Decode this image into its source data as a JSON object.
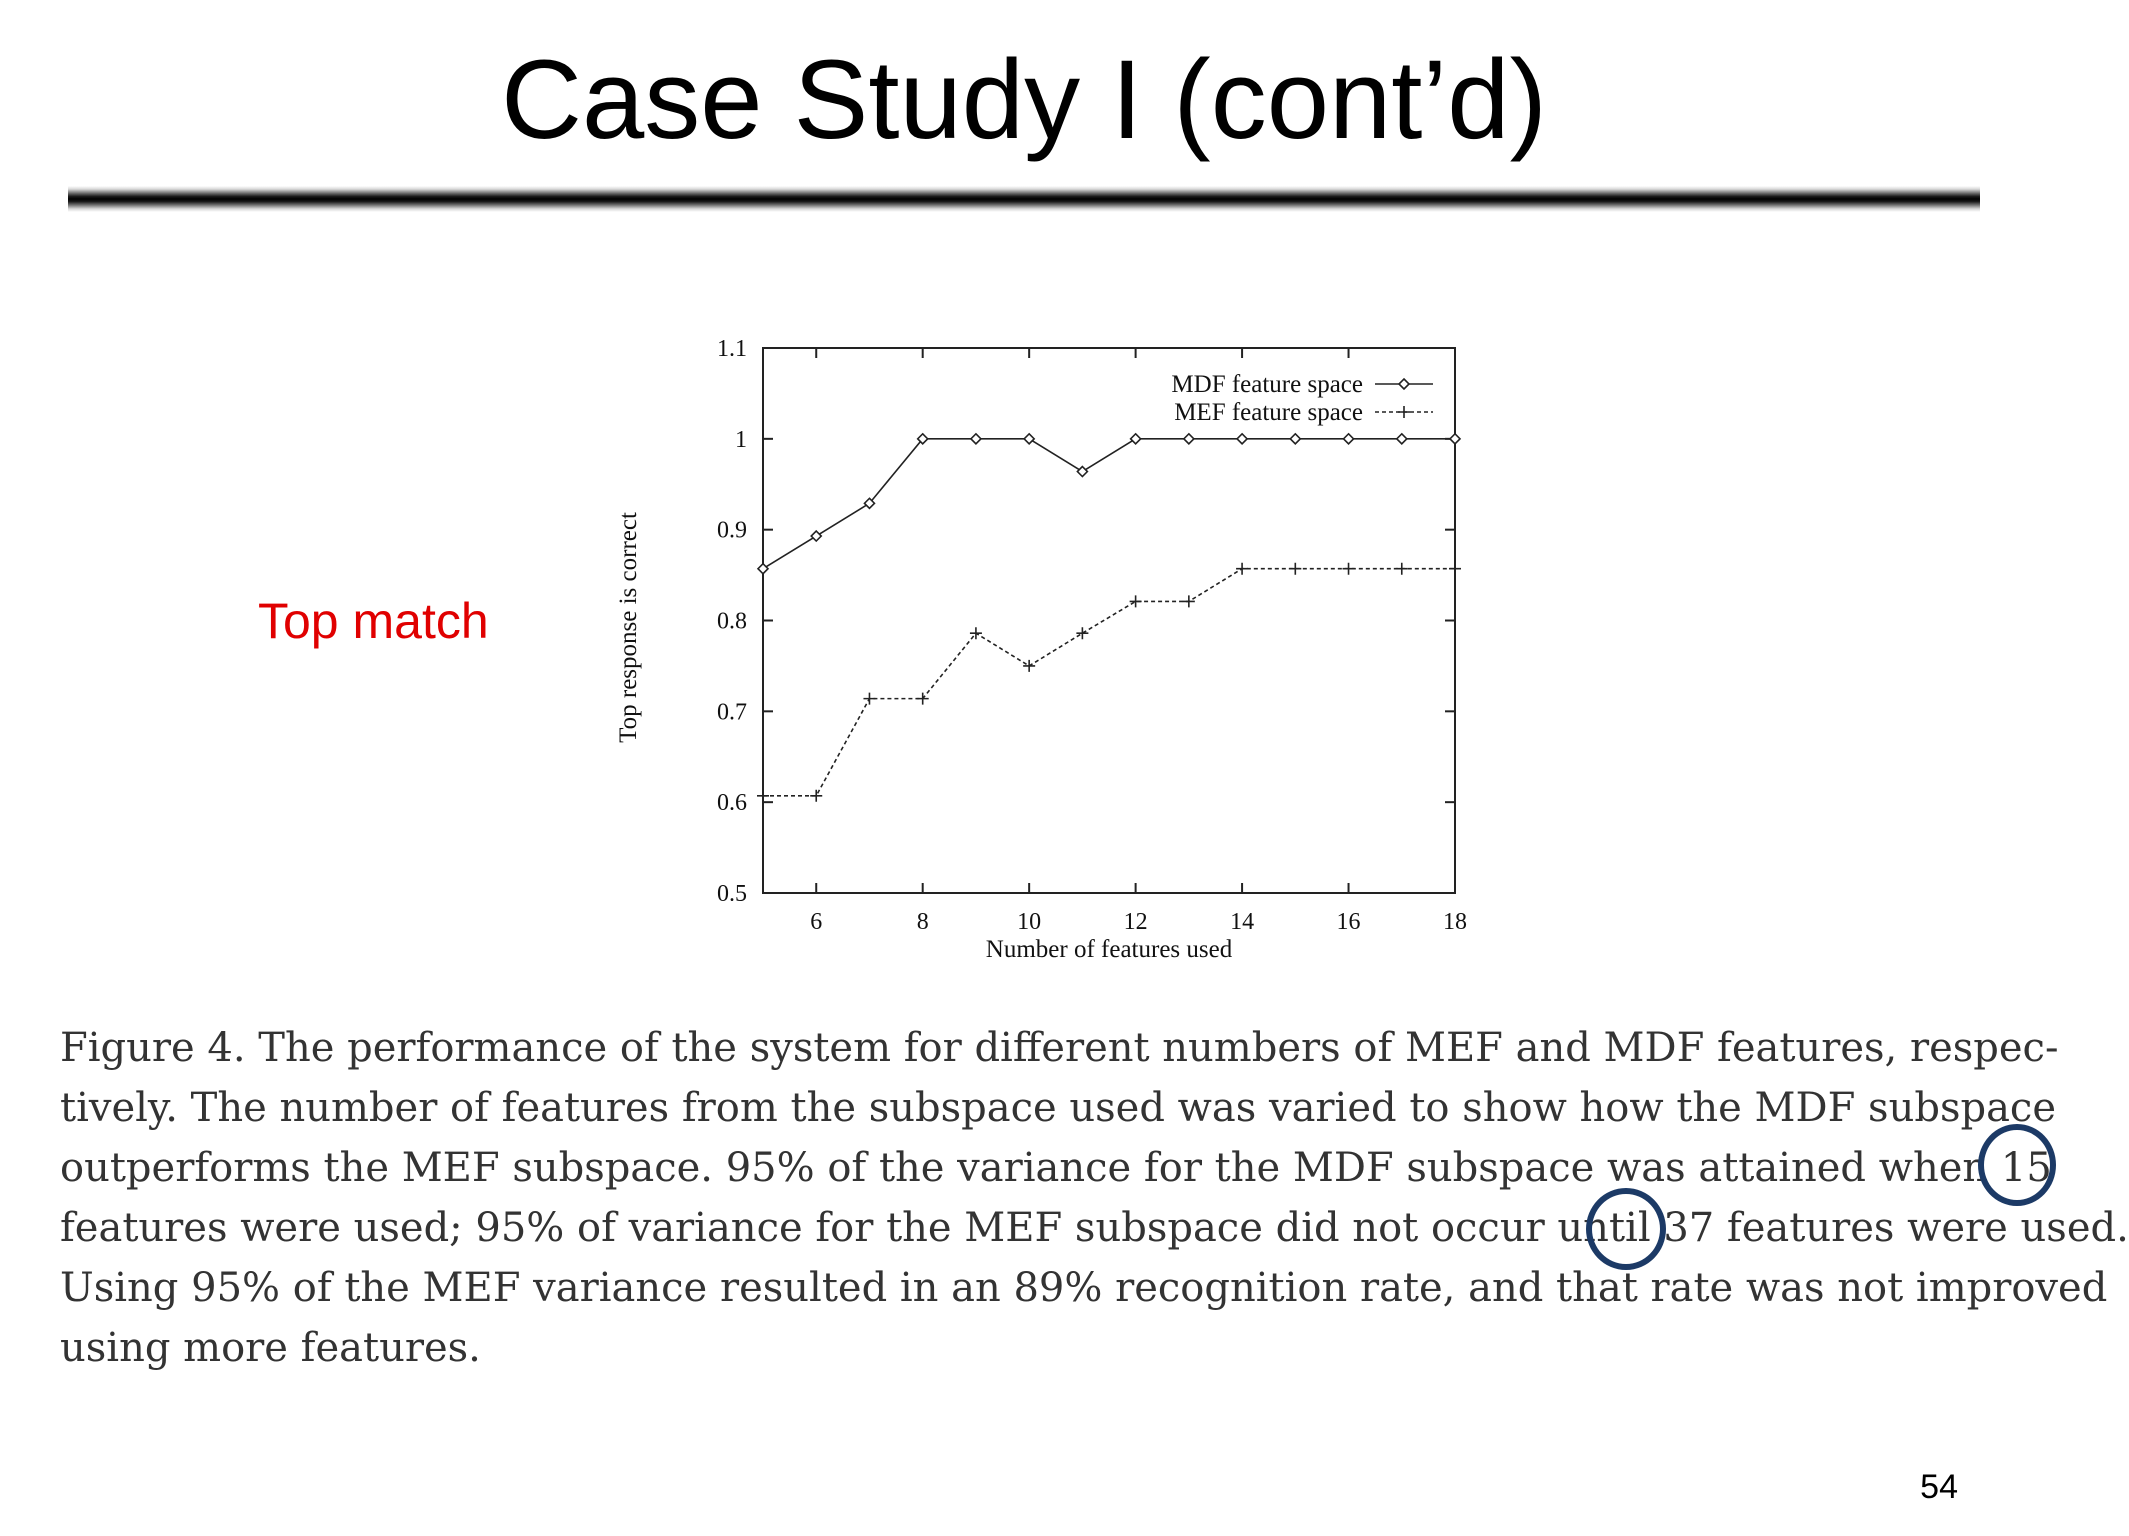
{
  "slide": {
    "title": "Case Study I (cont’d)",
    "side_label": "Top match",
    "page_number": "54"
  },
  "caption": {
    "lines": [
      "Figure 4.  The performance of the system for different numbers of MEF and MDF features, respec-",
      "tively.  The number of features from the subspace used was varied to show how the MDF subspace",
      "outperforms the MEF subspace.  95% of the variance for the MDF subspace was attained when 15",
      "features were used; 95% of variance for the MEF subspace did not occur until 37 features were used.",
      "Using 95% of the MEF variance resulted in an 89% recognition rate, and that rate was not improved",
      "using more features."
    ],
    "highlighted_numbers": [
      "15",
      "37"
    ]
  },
  "colors": {
    "title_text": "#000000",
    "side_label": "#e00000",
    "highlight_circle": "#1c3a66",
    "caption_text": "#333333"
  },
  "chart_data": {
    "type": "line",
    "title": "",
    "xlabel": "Number of features used",
    "ylabel": "Top response is correct",
    "xlim": [
      5,
      18
    ],
    "ylim": [
      0.5,
      1.1
    ],
    "x_ticks": [
      "6",
      "8",
      "10",
      "12",
      "14",
      "16",
      "18"
    ],
    "y_ticks": [
      "0.5",
      "0.6",
      "0.7",
      "0.8",
      "0.9",
      "1",
      "1.1"
    ],
    "grid": false,
    "legend_position": "top-right",
    "series": [
      {
        "name": "MDF feature space",
        "marker": "diamond",
        "line_style": "solid",
        "x": [
          5,
          6,
          7,
          8,
          9,
          10,
          11,
          12,
          13,
          14,
          15,
          16,
          17,
          18
        ],
        "values": [
          0.857,
          0.893,
          0.929,
          1.0,
          1.0,
          1.0,
          0.964,
          1.0,
          1.0,
          1.0,
          1.0,
          1.0,
          1.0,
          1.0
        ]
      },
      {
        "name": "MEF feature space",
        "marker": "plus",
        "line_style": "dashed",
        "x": [
          5,
          6,
          7,
          8,
          9,
          10,
          11,
          12,
          13,
          14,
          15,
          16,
          17,
          18
        ],
        "values": [
          0.607,
          0.607,
          0.714,
          0.714,
          0.786,
          0.75,
          0.786,
          0.821,
          0.821,
          0.857,
          0.857,
          0.857,
          0.857,
          0.857
        ]
      }
    ]
  }
}
